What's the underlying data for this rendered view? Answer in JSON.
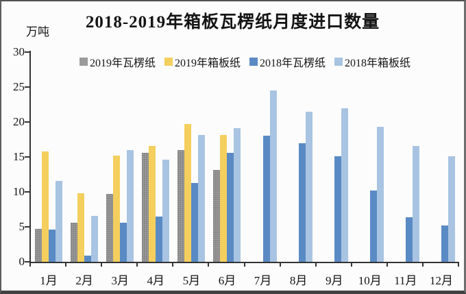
{
  "chart_data": {
    "type": "bar",
    "title": "2018-2019年箱板瓦楞纸月度进口数量",
    "ylabel": "万吨",
    "xlabel": "",
    "ylim": [
      0,
      30
    ],
    "yticks": [
      0,
      5,
      10,
      15,
      20,
      25,
      30
    ],
    "grid": false,
    "legend_position": "top-center",
    "categories": [
      "1月",
      "2月",
      "3月",
      "4月",
      "5月",
      "6月",
      "7月",
      "8月",
      "9月",
      "10月",
      "11月",
      "12月"
    ],
    "series": [
      {
        "name": "2019年瓦楞纸",
        "color": "#9b9b9b",
        "pattern": "dotted",
        "values": [
          4.7,
          5.6,
          9.7,
          15.6,
          16.0,
          13.1,
          null,
          null,
          null,
          null,
          null,
          null
        ]
      },
      {
        "name": "2019年箱板纸",
        "color": "#f4cf5e",
        "pattern": "solid",
        "values": [
          15.8,
          9.8,
          15.2,
          16.6,
          19.7,
          18.1,
          null,
          null,
          null,
          null,
          null,
          null
        ]
      },
      {
        "name": "2018年瓦楞纸",
        "color": "#5a8ac4",
        "pattern": "solid",
        "values": [
          4.6,
          0.9,
          5.6,
          6.5,
          11.3,
          15.6,
          18.0,
          17.0,
          15.1,
          10.2,
          6.4,
          5.2
        ]
      },
      {
        "name": "2018年箱板纸",
        "color": "#a8c4e2",
        "pattern": "solid",
        "values": [
          11.6,
          6.6,
          16.0,
          14.6,
          18.1,
          19.1,
          24.5,
          21.5,
          22.0,
          19.3,
          16.6,
          15.1
        ]
      }
    ]
  }
}
